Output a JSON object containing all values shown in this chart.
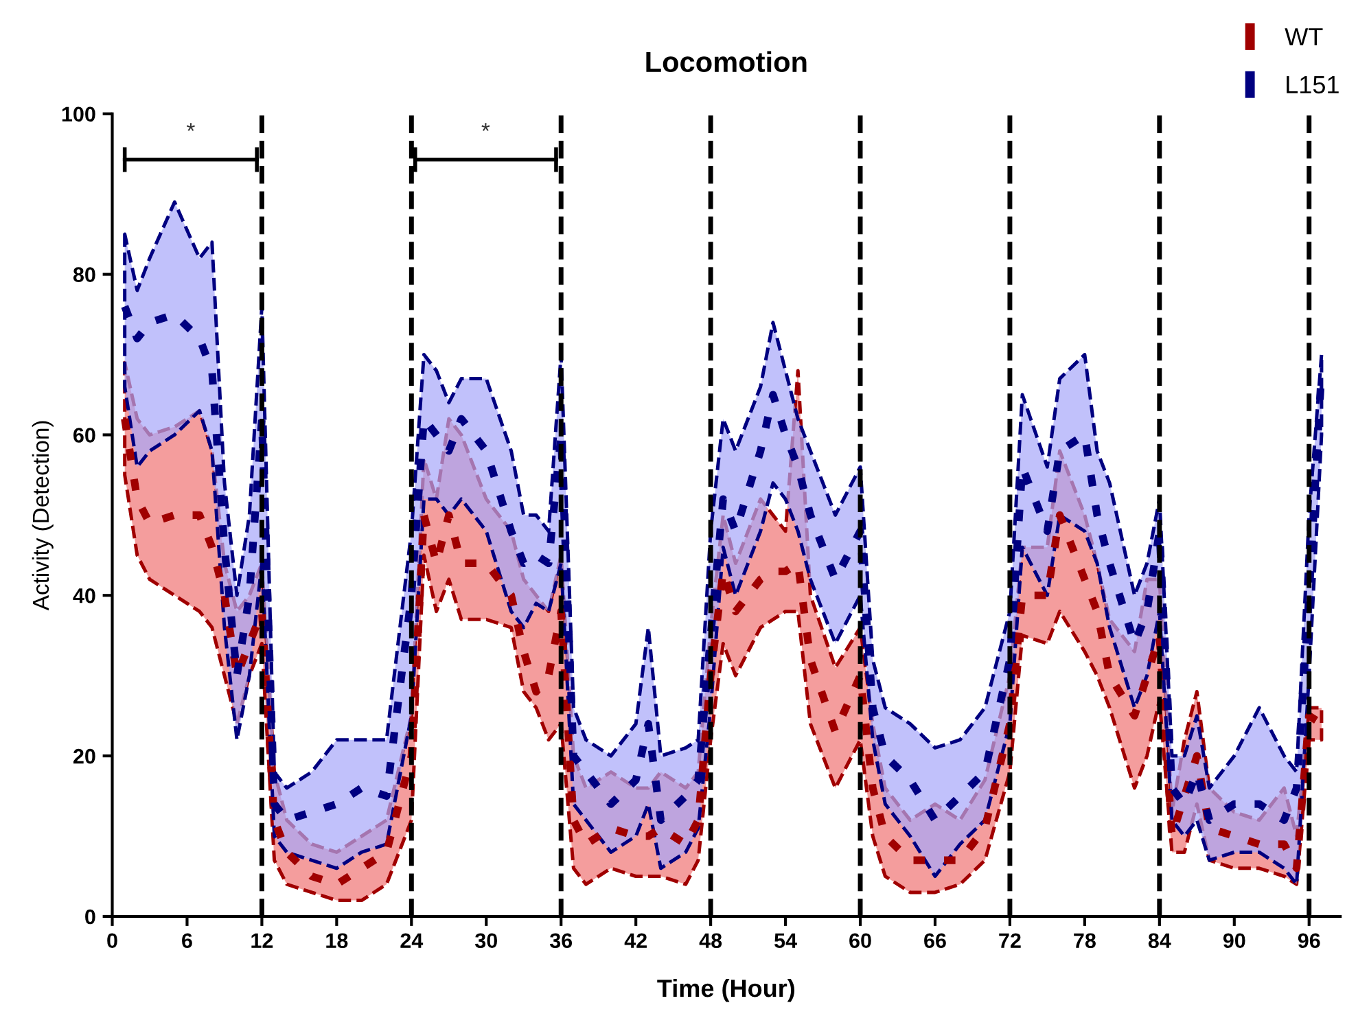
{
  "chart_data": {
    "type": "line",
    "title": "Locomotion",
    "xlabel": "Time (Hour)",
    "ylabel": "Activity (Detection)",
    "xlim": [
      0,
      98.5
    ],
    "xticks": [
      0,
      6,
      12,
      18,
      24,
      30,
      36,
      42,
      48,
      54,
      60,
      66,
      72,
      78,
      84,
      90,
      96
    ],
    "ylim": [
      0,
      100
    ],
    "yticks": [
      0,
      20,
      40,
      60,
      80,
      100
    ],
    "grid": false,
    "legend": "top right",
    "line_style": "dashed",
    "marker": "none",
    "x": [
      1,
      2,
      3,
      5,
      7,
      8,
      9,
      10,
      11,
      12,
      13,
      14,
      16,
      18,
      20,
      22,
      24,
      25,
      26,
      27,
      28,
      30,
      32,
      33,
      34,
      35,
      36,
      37,
      38,
      40,
      42,
      43,
      44,
      46,
      47,
      48,
      49,
      50,
      52,
      53,
      54,
      55,
      56,
      58,
      60,
      61,
      62,
      64,
      66,
      68,
      70,
      72,
      73,
      75,
      76,
      78,
      79,
      80,
      82,
      83,
      84,
      85,
      86,
      87,
      88,
      90,
      92,
      94,
      95,
      96,
      97
    ],
    "series": [
      {
        "name": "WT",
        "color": "#a00000",
        "values": [
          62,
          52,
          49,
          50,
          50,
          46,
          40,
          30,
          34,
          38,
          12,
          8,
          5,
          4,
          6,
          8,
          20,
          50,
          44,
          50,
          44,
          44,
          40,
          33,
          28,
          30,
          38,
          12,
          9,
          11,
          10,
          10,
          11,
          9,
          12,
          30,
          43,
          38,
          42,
          43,
          43,
          44,
          32,
          23,
          30,
          16,
          10,
          7,
          7,
          7,
          11,
          24,
          40,
          40,
          50,
          42,
          38,
          30,
          25,
          30,
          35,
          10,
          15,
          20,
          11,
          10,
          9,
          9,
          6,
          25,
          24
        ],
        "lower": [
          55,
          45,
          42,
          40,
          38,
          36,
          30,
          24,
          30,
          34,
          7,
          4,
          3,
          2,
          2,
          4,
          12,
          45,
          38,
          42,
          37,
          37,
          36,
          28,
          26,
          22,
          24,
          6,
          4,
          6,
          5,
          5,
          5,
          4,
          7,
          22,
          34,
          30,
          36,
          37,
          38,
          38,
          24,
          16,
          22,
          10,
          5,
          3,
          3,
          4,
          7,
          18,
          35,
          34,
          38,
          33,
          30,
          26,
          16,
          20,
          27,
          8,
          8,
          14,
          7,
          6,
          6,
          5,
          4,
          22,
          22
        ],
        "upper": [
          69,
          62,
          60,
          61,
          63,
          58,
          44,
          38,
          40,
          44,
          18,
          12,
          9,
          8,
          10,
          12,
          25,
          57,
          52,
          62,
          60,
          52,
          48,
          42,
          40,
          38,
          45,
          20,
          16,
          18,
          16,
          16,
          18,
          16,
          18,
          36,
          50,
          44,
          52,
          50,
          48,
          68,
          40,
          31,
          36,
          24,
          16,
          12,
          14,
          12,
          17,
          30,
          46,
          46,
          58,
          50,
          44,
          37,
          33,
          42,
          42,
          13,
          22,
          28,
          16,
          13,
          12,
          16,
          10,
          26,
          26
        ]
      },
      {
        "name": "L151",
        "color": "#000080",
        "values": [
          76,
          72,
          74,
          75,
          72,
          68,
          46,
          30,
          40,
          62,
          14,
          12,
          13,
          14,
          16,
          15,
          40,
          62,
          60,
          58,
          62,
          58,
          48,
          44,
          45,
          44,
          60,
          20,
          18,
          14,
          17,
          24,
          12,
          15,
          17,
          35,
          52,
          48,
          58,
          65,
          60,
          56,
          50,
          42,
          48,
          26,
          20,
          17,
          12,
          15,
          18,
          32,
          56,
          48,
          58,
          60,
          50,
          44,
          34,
          38,
          48,
          16,
          14,
          18,
          12,
          14,
          14,
          12,
          16,
          40,
          68
        ],
        "lower": [
          66,
          56,
          58,
          60,
          63,
          58,
          36,
          22,
          30,
          44,
          10,
          8,
          7,
          6,
          8,
          9,
          25,
          52,
          52,
          50,
          52,
          48,
          38,
          36,
          39,
          38,
          44,
          14,
          12,
          8,
          10,
          14,
          6,
          8,
          11,
          26,
          46,
          40,
          48,
          54,
          52,
          48,
          42,
          34,
          40,
          22,
          14,
          10,
          5,
          9,
          12,
          24,
          46,
          40,
          50,
          48,
          44,
          36,
          26,
          30,
          38,
          12,
          10,
          12,
          7,
          8,
          8,
          6,
          4,
          30,
          60
        ],
        "upper": [
          85,
          78,
          82,
          89,
          82,
          84,
          54,
          40,
          50,
          76,
          18,
          16,
          18,
          22,
          22,
          22,
          48,
          70,
          68,
          64,
          67,
          67,
          58,
          50,
          50,
          48,
          70,
          26,
          22,
          20,
          24,
          36,
          20,
          21,
          22,
          48,
          62,
          58,
          66,
          74,
          68,
          62,
          58,
          50,
          56,
          32,
          26,
          24,
          21,
          22,
          26,
          38,
          65,
          56,
          67,
          70,
          58,
          54,
          40,
          44,
          52,
          20,
          20,
          25,
          16,
          20,
          26,
          20,
          18,
          50,
          70
        ]
      }
    ],
    "ref_lines": [
      {
        "axis": "x",
        "value": 12,
        "color": "#000000",
        "line_style": "dashed"
      },
      {
        "axis": "x",
        "value": 24,
        "color": "#000000",
        "line_style": "dashed"
      },
      {
        "axis": "x",
        "value": 36,
        "color": "#000000",
        "line_style": "dashed"
      },
      {
        "axis": "x",
        "value": 48,
        "color": "#000000",
        "line_style": "dashed"
      },
      {
        "axis": "x",
        "value": 60,
        "color": "#000000",
        "line_style": "dashed"
      },
      {
        "axis": "x",
        "value": 72,
        "color": "#000000",
        "line_style": "dashed"
      },
      {
        "axis": "x",
        "value": 84,
        "color": "#000000",
        "line_style": "dashed"
      },
      {
        "axis": "x",
        "value": 96,
        "color": "#000000",
        "line_style": "dashed"
      }
    ],
    "annotations": [
      "*",
      "*"
    ]
  }
}
